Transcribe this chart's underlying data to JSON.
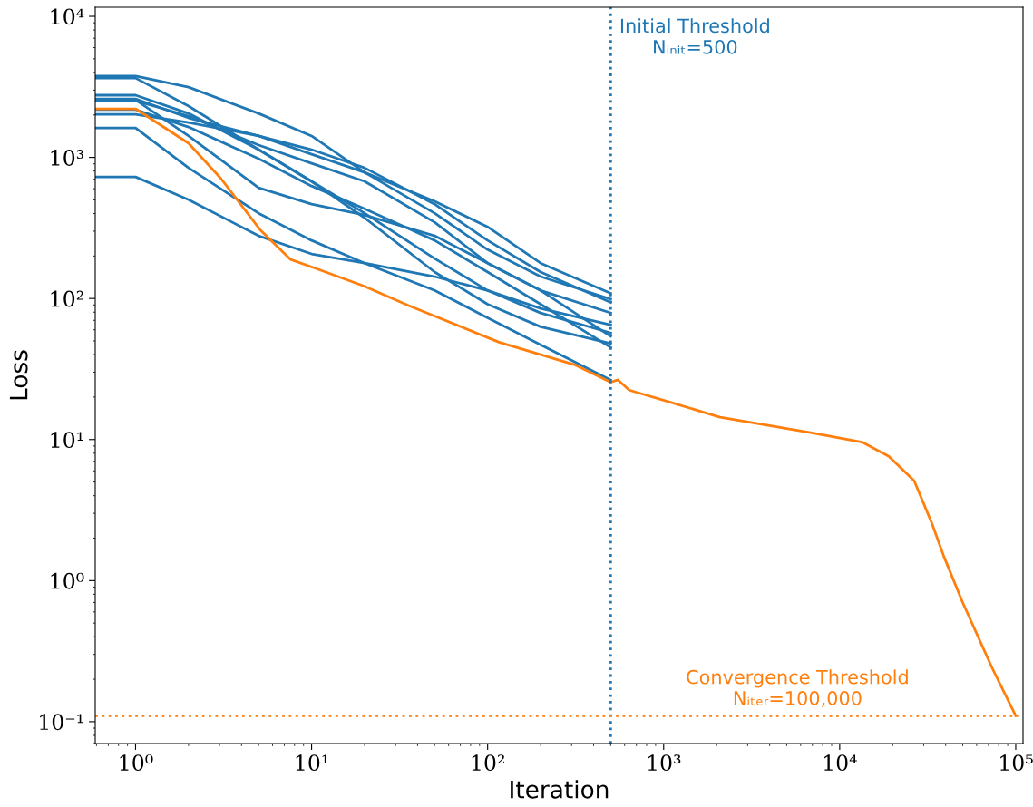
{
  "chart_data": {
    "type": "line",
    "xlabel": "Iteration",
    "ylabel": "Loss",
    "log": "xy",
    "grid": false,
    "legend": false,
    "line_style": "solid",
    "xlim": [
      0.59,
      110000
    ],
    "ylim": [
      0.07,
      11600
    ],
    "xticks": [
      {
        "value": 1,
        "label": "10⁰"
      },
      {
        "value": 10,
        "label": "10¹"
      },
      {
        "value": 100,
        "label": "10²"
      },
      {
        "value": 1000,
        "label": "10³"
      },
      {
        "value": 10000,
        "label": "10⁴"
      },
      {
        "value": 100000,
        "label": "10⁵"
      }
    ],
    "yticks": [
      {
        "value": 0.1,
        "label": "10⁻¹"
      },
      {
        "value": 1,
        "label": "10⁰"
      },
      {
        "value": 10,
        "label": "10¹"
      },
      {
        "value": 100,
        "label": "10²"
      },
      {
        "value": 1000,
        "label": "10³"
      },
      {
        "value": 10000,
        "label": "10⁴"
      }
    ],
    "annotations": [
      "Convergence Threshold\nNᵢₜₑᵣ=100,000"
    ],
    "x": [
      0.59,
      1,
      2,
      5,
      10,
      20,
      50,
      100,
      200,
      500
    ],
    "series": [
      {
        "color": "#1f77b4",
        "values": [
          3770,
          3770,
          3150,
          2050,
          1420,
          783,
          488,
          322,
          178,
          109
        ]
      },
      {
        "color": "#1f77b4",
        "values": [
          3650,
          3650,
          2310,
          1135,
          676,
          373,
          154,
          91,
          63,
          48
        ]
      },
      {
        "color": "#1f77b4",
        "values": [
          2760,
          2760,
          2050,
          1135,
          676,
          402,
          192,
          114,
          79,
          57
        ]
      },
      {
        "color": "#1f77b4",
        "values": [
          2600,
          2600,
          1905,
          1420,
          1052,
          783,
          402,
          222,
          143,
          99
        ]
      },
      {
        "color": "#1f77b4",
        "values": [
          2520,
          2520,
          1963,
          1222,
          908,
          676,
          347,
          178,
          114,
          79
        ]
      },
      {
        "color": "#1f77b4",
        "values": [
          2560,
          2560,
          1420,
          609,
          466,
          391,
          278,
          178,
          114,
          54
        ]
      },
      {
        "color": "#1f77b4",
        "values": [
          2020,
          2020,
          1770,
          1420,
          1135,
          843,
          466,
          258,
          154,
          94
        ]
      },
      {
        "color": "#1f77b4",
        "values": [
          2180,
          2180,
          1642,
          978,
          627,
          433,
          258,
          154,
          91,
          45
        ]
      },
      {
        "color": "#1f77b4",
        "values": [
          1618,
          1618,
          843,
          402,
          258,
          178,
          114,
          73,
          47,
          26.4
        ]
      },
      {
        "color": "#1f77b4",
        "values": [
          727,
          727,
          502,
          278,
          207,
          178,
          143,
          114,
          85,
          65
        ]
      },
      {
        "color": "#ff7f0e",
        "x": [
          0.59,
          1,
          2,
          3.05,
          5.1,
          7.6,
          10.9,
          19.7,
          35.6,
          116,
          310,
          500,
          550,
          637,
          1070,
          2090,
          6840,
          13400,
          19000,
          26500,
          33600,
          39000,
          49700,
          73500,
          100000
        ],
        "values": [
          2210,
          2210,
          1260,
          710,
          307,
          189,
          161,
          123,
          89,
          49,
          34,
          25.5,
          26.5,
          22.4,
          18.5,
          14.4,
          11.2,
          9.6,
          7.6,
          5.1,
          2.5,
          1.49,
          0.71,
          0.24,
          0.11
        ]
      }
    ],
    "ref_lines": [
      {
        "axis": "x",
        "value": 500,
        "label": "Initial Threshold\nNᵢₙᵢₜ=500",
        "color": "#1f77b4",
        "line_style": "dotted"
      },
      {
        "axis": "y",
        "value": 0.11,
        "color": "#ff7f0e",
        "line_style": "dotted"
      }
    ]
  }
}
